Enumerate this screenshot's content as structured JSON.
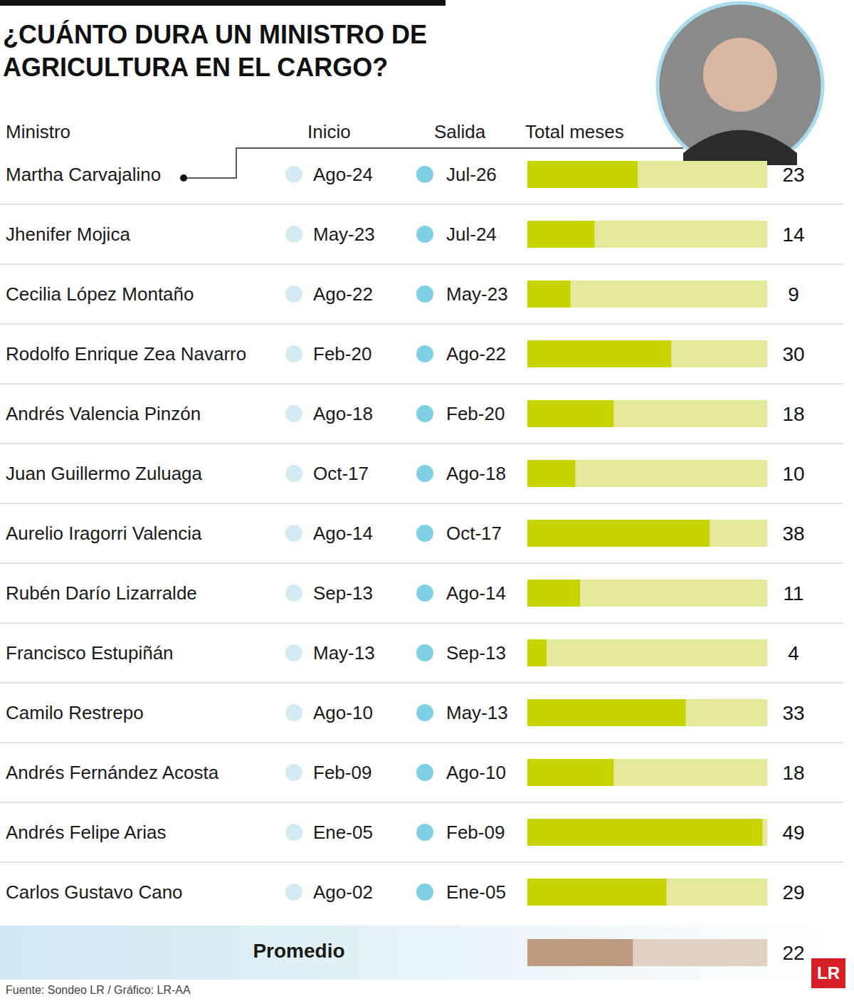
{
  "title": "¿CUÁNTO DURA UN MINISTRO DE AGRICULTURA EN EL CARGO?",
  "columns": [
    "Ministro",
    "Inicio",
    "Salida",
    "Total meses"
  ],
  "source": "Fuente: Sondeo LR / Gráfico: LR-AA",
  "logo": "LR",
  "chart_data": {
    "type": "bar",
    "orientation": "horizontal",
    "categories": [
      "Martha Carvajalino",
      "Jhenifer Mojica",
      "Cecilia López Montaño",
      "Rodolfo Enrique Zea Navarro",
      "Andrés Valencia Pinzón",
      "Juan Guillermo Zuluaga",
      "Aurelio Iragorri Valencia",
      "Rubén Darío Lizarralde",
      "Francisco Estupiñán",
      "Camilo Restrepo",
      "Andrés Fernández Acosta",
      "Andrés Felipe Arias",
      "Carlos Gustavo Cano"
    ],
    "start": [
      "Ago-24",
      "May-23",
      "Ago-22",
      "Feb-20",
      "Ago-18",
      "Oct-17",
      "Ago-14",
      "Sep-13",
      "May-13",
      "Ago-10",
      "Feb-09",
      "Ene-05",
      "Ago-02"
    ],
    "end": [
      "Jul-26",
      "Jul-24",
      "May-23",
      "Ago-22",
      "Feb-20",
      "Ago-18",
      "Oct-17",
      "Ago-14",
      "Sep-13",
      "May-13",
      "Ago-10",
      "Feb-09",
      "Ene-05"
    ],
    "values": [
      23,
      14,
      9,
      30,
      18,
      10,
      38,
      11,
      4,
      33,
      18,
      49,
      29
    ],
    "color": "#c8d400",
    "xlim": [
      0,
      50
    ],
    "data_labels": true,
    "tick_labels": false,
    "average": {
      "label": "Promedio",
      "value": 22,
      "color": "#bf9c80"
    }
  }
}
